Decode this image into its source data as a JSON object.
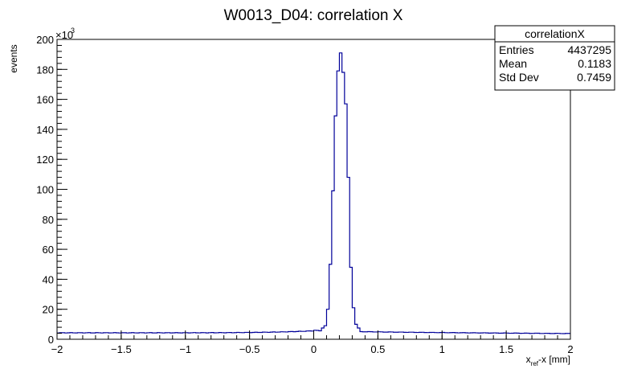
{
  "chart_data": {
    "type": "histogram",
    "title": "W0013_D04: correlation X",
    "xlabel": "x_ref-x [mm]",
    "xlabel_main": "x",
    "xlabel_sub": "ref",
    "xlabel_rest": "-x [mm]",
    "ylabel": "events",
    "y_multiplier": "×10",
    "y_multiplier_exp": "3",
    "xlim": [
      -2,
      2
    ],
    "ylim": [
      0,
      200
    ],
    "x_ticks": [
      -2,
      -1.5,
      -1,
      -0.5,
      0,
      0.5,
      1,
      1.5,
      2
    ],
    "x_tick_labels": [
      "−2",
      "−1.5",
      "−1",
      "−0.5",
      "0",
      "0.5",
      "1",
      "1.5",
      "2"
    ],
    "y_ticks": [
      0,
      20,
      40,
      60,
      80,
      100,
      120,
      140,
      160,
      180,
      200
    ],
    "y_tick_labels": [
      "0",
      "20",
      "40",
      "60",
      "80",
      "100",
      "120",
      "140",
      "160",
      "180",
      "200"
    ],
    "line_color": "#000099",
    "peak_bins": [
      {
        "x0": 0.06,
        "x1": 0.08,
        "y": 7.5
      },
      {
        "x0": 0.08,
        "x1": 0.1,
        "y": 9
      },
      {
        "x0": 0.1,
        "x1": 0.12,
        "y": 20
      },
      {
        "x0": 0.12,
        "x1": 0.14,
        "y": 50
      },
      {
        "x0": 0.14,
        "x1": 0.16,
        "y": 99
      },
      {
        "x0": 0.16,
        "x1": 0.18,
        "y": 149
      },
      {
        "x0": 0.18,
        "x1": 0.2,
        "y": 179
      },
      {
        "x0": 0.2,
        "x1": 0.22,
        "y": 191
      },
      {
        "x0": 0.22,
        "x1": 0.24,
        "y": 178
      },
      {
        "x0": 0.24,
        "x1": 0.26,
        "y": 157
      },
      {
        "x0": 0.26,
        "x1": 0.28,
        "y": 108
      },
      {
        "x0": 0.28,
        "x1": 0.3,
        "y": 48
      },
      {
        "x0": 0.3,
        "x1": 0.32,
        "y": 21
      },
      {
        "x0": 0.32,
        "x1": 0.34,
        "y": 10
      },
      {
        "x0": 0.34,
        "x1": 0.36,
        "y": 7.5
      }
    ],
    "background": {
      "y_left": 4.3,
      "y_near_peak": 6.0,
      "y_right": 3.8
    }
  },
  "stats_box": {
    "name": "correlationX",
    "rows": [
      {
        "label": "Entries",
        "value": "4437295"
      },
      {
        "label": "Mean",
        "value": "0.1183"
      },
      {
        "label": "Std Dev",
        "value": "0.7459"
      }
    ]
  }
}
